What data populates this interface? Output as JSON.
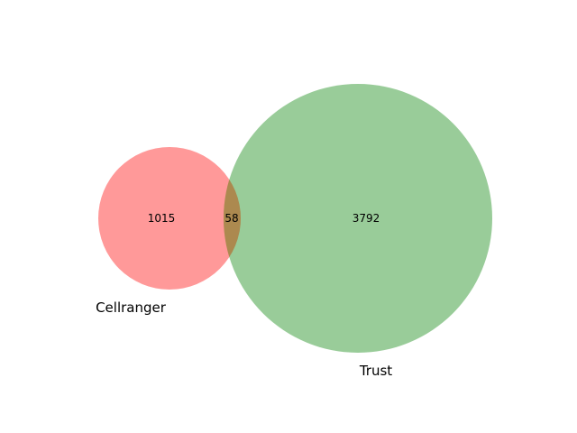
{
  "venn": {
    "sets": [
      {
        "label": "Cellranger",
        "color": "#ff0000",
        "only_count": "1015"
      },
      {
        "label": "Trust",
        "color": "#008000",
        "only_count": "3792"
      }
    ],
    "overlap": {
      "count": "58",
      "color": "#c8803c"
    },
    "opacity": 0.4
  }
}
